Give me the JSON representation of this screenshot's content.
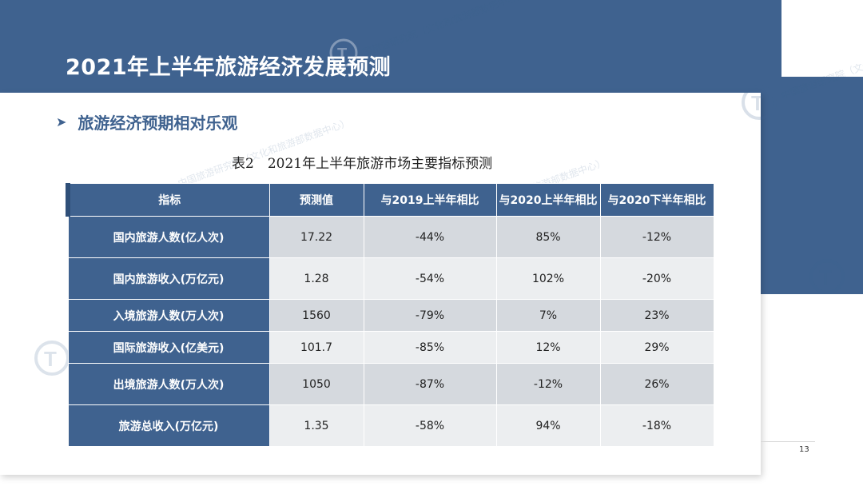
{
  "slide": {
    "title": "2021年上半年旅游经济发展预测",
    "bullet": "旅游经济预期相对乐观",
    "caption": "表2　2021年上半年旅游市场主要指标预测",
    "page_number": "13",
    "watermark_text": "中国旅游研究院（文化和旅游部数据中心）",
    "colors": {
      "header": "#3f628f",
      "row_label_bg": "#3f628f",
      "row_odd": "#d5d9de",
      "row_even": "#eceef0"
    }
  },
  "table": {
    "headers": [
      "指标",
      "预测值",
      "与2019上半年相比",
      "与2020上半年相比",
      "与2020下半年相比"
    ],
    "rows": [
      {
        "label": "国内旅游人数(亿人次)",
        "forecast": "17.22",
        "vs2019h1": "-44%",
        "vs2020h1": "85%",
        "vs2020h2": "-12%"
      },
      {
        "label": "国内旅游收入(万亿元)",
        "forecast": "1.28",
        "vs2019h1": "-54%",
        "vs2020h1": "102%",
        "vs2020h2": "-20%"
      },
      {
        "label": "入境旅游人数(万人次)",
        "forecast": "1560",
        "vs2019h1": "-79%",
        "vs2020h1": "7%",
        "vs2020h2": "23%"
      },
      {
        "label": "国际旅游收入(亿美元)",
        "forecast": "101.7",
        "vs2019h1": "-85%",
        "vs2020h1": "12%",
        "vs2020h2": "29%"
      },
      {
        "label": "出境旅游人数(万人次)",
        "forecast": "1050",
        "vs2019h1": "-87%",
        "vs2020h1": "-12%",
        "vs2020h2": "26%"
      },
      {
        "label": "旅游总收入(万亿元)",
        "forecast": "1.35",
        "vs2019h1": "-58%",
        "vs2020h1": "94%",
        "vs2020h2": "-18%"
      }
    ]
  }
}
